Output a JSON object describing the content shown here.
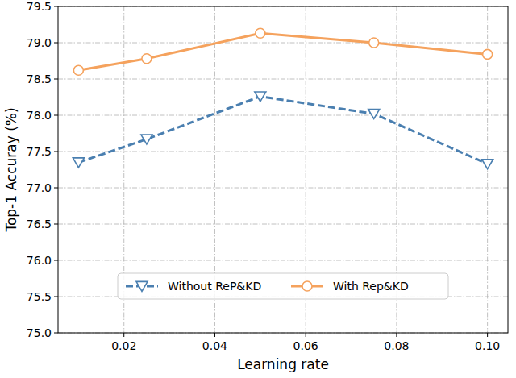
{
  "chart_data": {
    "type": "line",
    "x_label": "Learning rate",
    "y_label": "Top-1 Accuray (%)",
    "x": [
      0.01,
      0.025,
      0.05,
      0.075,
      0.1
    ],
    "series": [
      {
        "name": "Without ReP&KD",
        "color": "#4a7fb0",
        "marker": "triangle_down",
        "line_style": "dashed",
        "values": [
          77.35,
          77.67,
          78.26,
          78.02,
          77.33
        ]
      },
      {
        "name": "With Rep&KD",
        "color": "#f5a25d",
        "marker": "circle",
        "line_style": "solid",
        "values": [
          78.62,
          78.78,
          79.13,
          79.0,
          78.84
        ]
      }
    ],
    "xlim": [
      0.0055,
      0.1045
    ],
    "xticks": [
      0.02,
      0.04,
      0.06,
      0.08,
      {
        "value": 0.1,
        "label": "0.10"
      }
    ],
    "ylim": [
      75,
      79.5
    ],
    "yticks": [
      {
        "value": 75,
        "label": "75.0"
      },
      75.5,
      {
        "value": 76,
        "label": "76.0"
      },
      76.5,
      {
        "value": 77,
        "label": "77.0"
      },
      77.5,
      {
        "value": 78,
        "label": "78.0"
      },
      78.5,
      {
        "value": 79,
        "label": "79.0"
      },
      79.5
    ],
    "grid": true,
    "legend": "lower center"
  }
}
